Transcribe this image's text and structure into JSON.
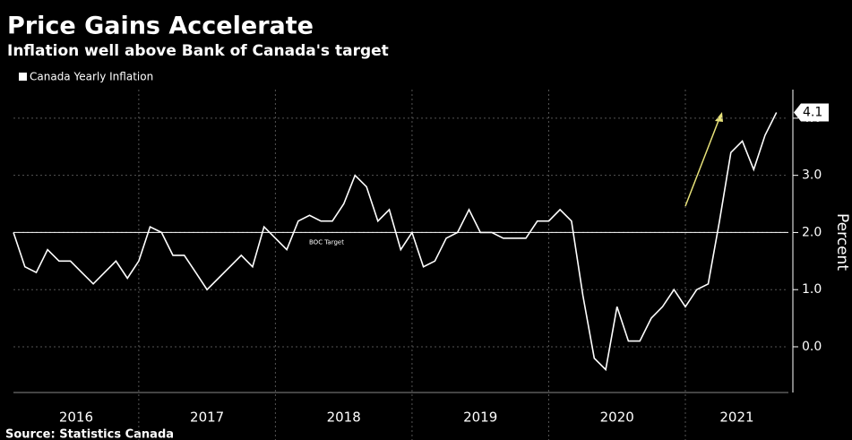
{
  "chart_data": {
    "type": "line",
    "title": "Price Gains Accelerate",
    "subtitle": "Inflation well above Bank of Canada's target",
    "source": "Source: Statistics Canada",
    "ylabel": "Percent",
    "x": [
      2016.083,
      2016.167,
      2016.25,
      2016.333,
      2016.417,
      2016.5,
      2016.583,
      2016.667,
      2016.75,
      2016.833,
      2016.917,
      2017,
      2017.083,
      2017.167,
      2017.25,
      2017.333,
      2017.417,
      2017.5,
      2017.583,
      2017.667,
      2017.75,
      2017.833,
      2017.917,
      2018,
      2018.083,
      2018.167,
      2018.25,
      2018.333,
      2018.417,
      2018.5,
      2018.583,
      2018.667,
      2018.75,
      2018.833,
      2018.917,
      2019,
      2019.083,
      2019.167,
      2019.25,
      2019.333,
      2019.417,
      2019.5,
      2019.583,
      2019.667,
      2019.75,
      2019.833,
      2019.917,
      2020,
      2020.083,
      2020.167,
      2020.25,
      2020.333,
      2020.417,
      2020.5,
      2020.583,
      2020.667,
      2020.75,
      2020.833,
      2020.917,
      2021,
      2021.083,
      2021.167,
      2021.25,
      2021.333,
      2021.417,
      2021.5,
      2021.583,
      2021.667
    ],
    "series": [
      {
        "name": "Canada Yearly Inflation",
        "color": "#ffffff",
        "values": [
          2.0,
          1.4,
          1.3,
          1.7,
          1.5,
          1.5,
          1.3,
          1.1,
          1.3,
          1.5,
          1.2,
          1.5,
          2.1,
          2.0,
          1.6,
          1.6,
          1.3,
          1.0,
          1.2,
          1.4,
          1.6,
          1.4,
          2.1,
          1.9,
          1.7,
          2.2,
          2.3,
          2.2,
          2.2,
          2.5,
          3.0,
          2.8,
          2.2,
          2.4,
          1.7,
          2.0,
          1.4,
          1.5,
          1.9,
          2.0,
          2.4,
          2.0,
          2.0,
          1.9,
          1.9,
          1.9,
          2.2,
          2.2,
          2.4,
          2.2,
          0.9,
          -0.2,
          -0.4,
          0.7,
          0.1,
          0.1,
          0.5,
          0.7,
          1.0,
          0.7,
          1.0,
          1.1,
          2.2,
          3.4,
          3.6,
          3.1,
          3.7,
          4.1
        ]
      }
    ],
    "reference_line": {
      "value": 2,
      "label": "BOC Target"
    },
    "xlim": [
      2016.083,
      2021.754
    ],
    "xticks": [
      2016,
      2017,
      2018,
      2019,
      2020,
      2021
    ],
    "ylim": [
      -0.8,
      4.5
    ],
    "yticks": [
      {
        "value": 0,
        "label": "0.0"
      },
      {
        "value": 1,
        "label": "1.0"
      },
      {
        "value": 2,
        "label": "2.0"
      },
      {
        "value": 3,
        "label": "3.0"
      },
      {
        "value": 4,
        "label": "4.0"
      }
    ],
    "grid": true
  }
}
